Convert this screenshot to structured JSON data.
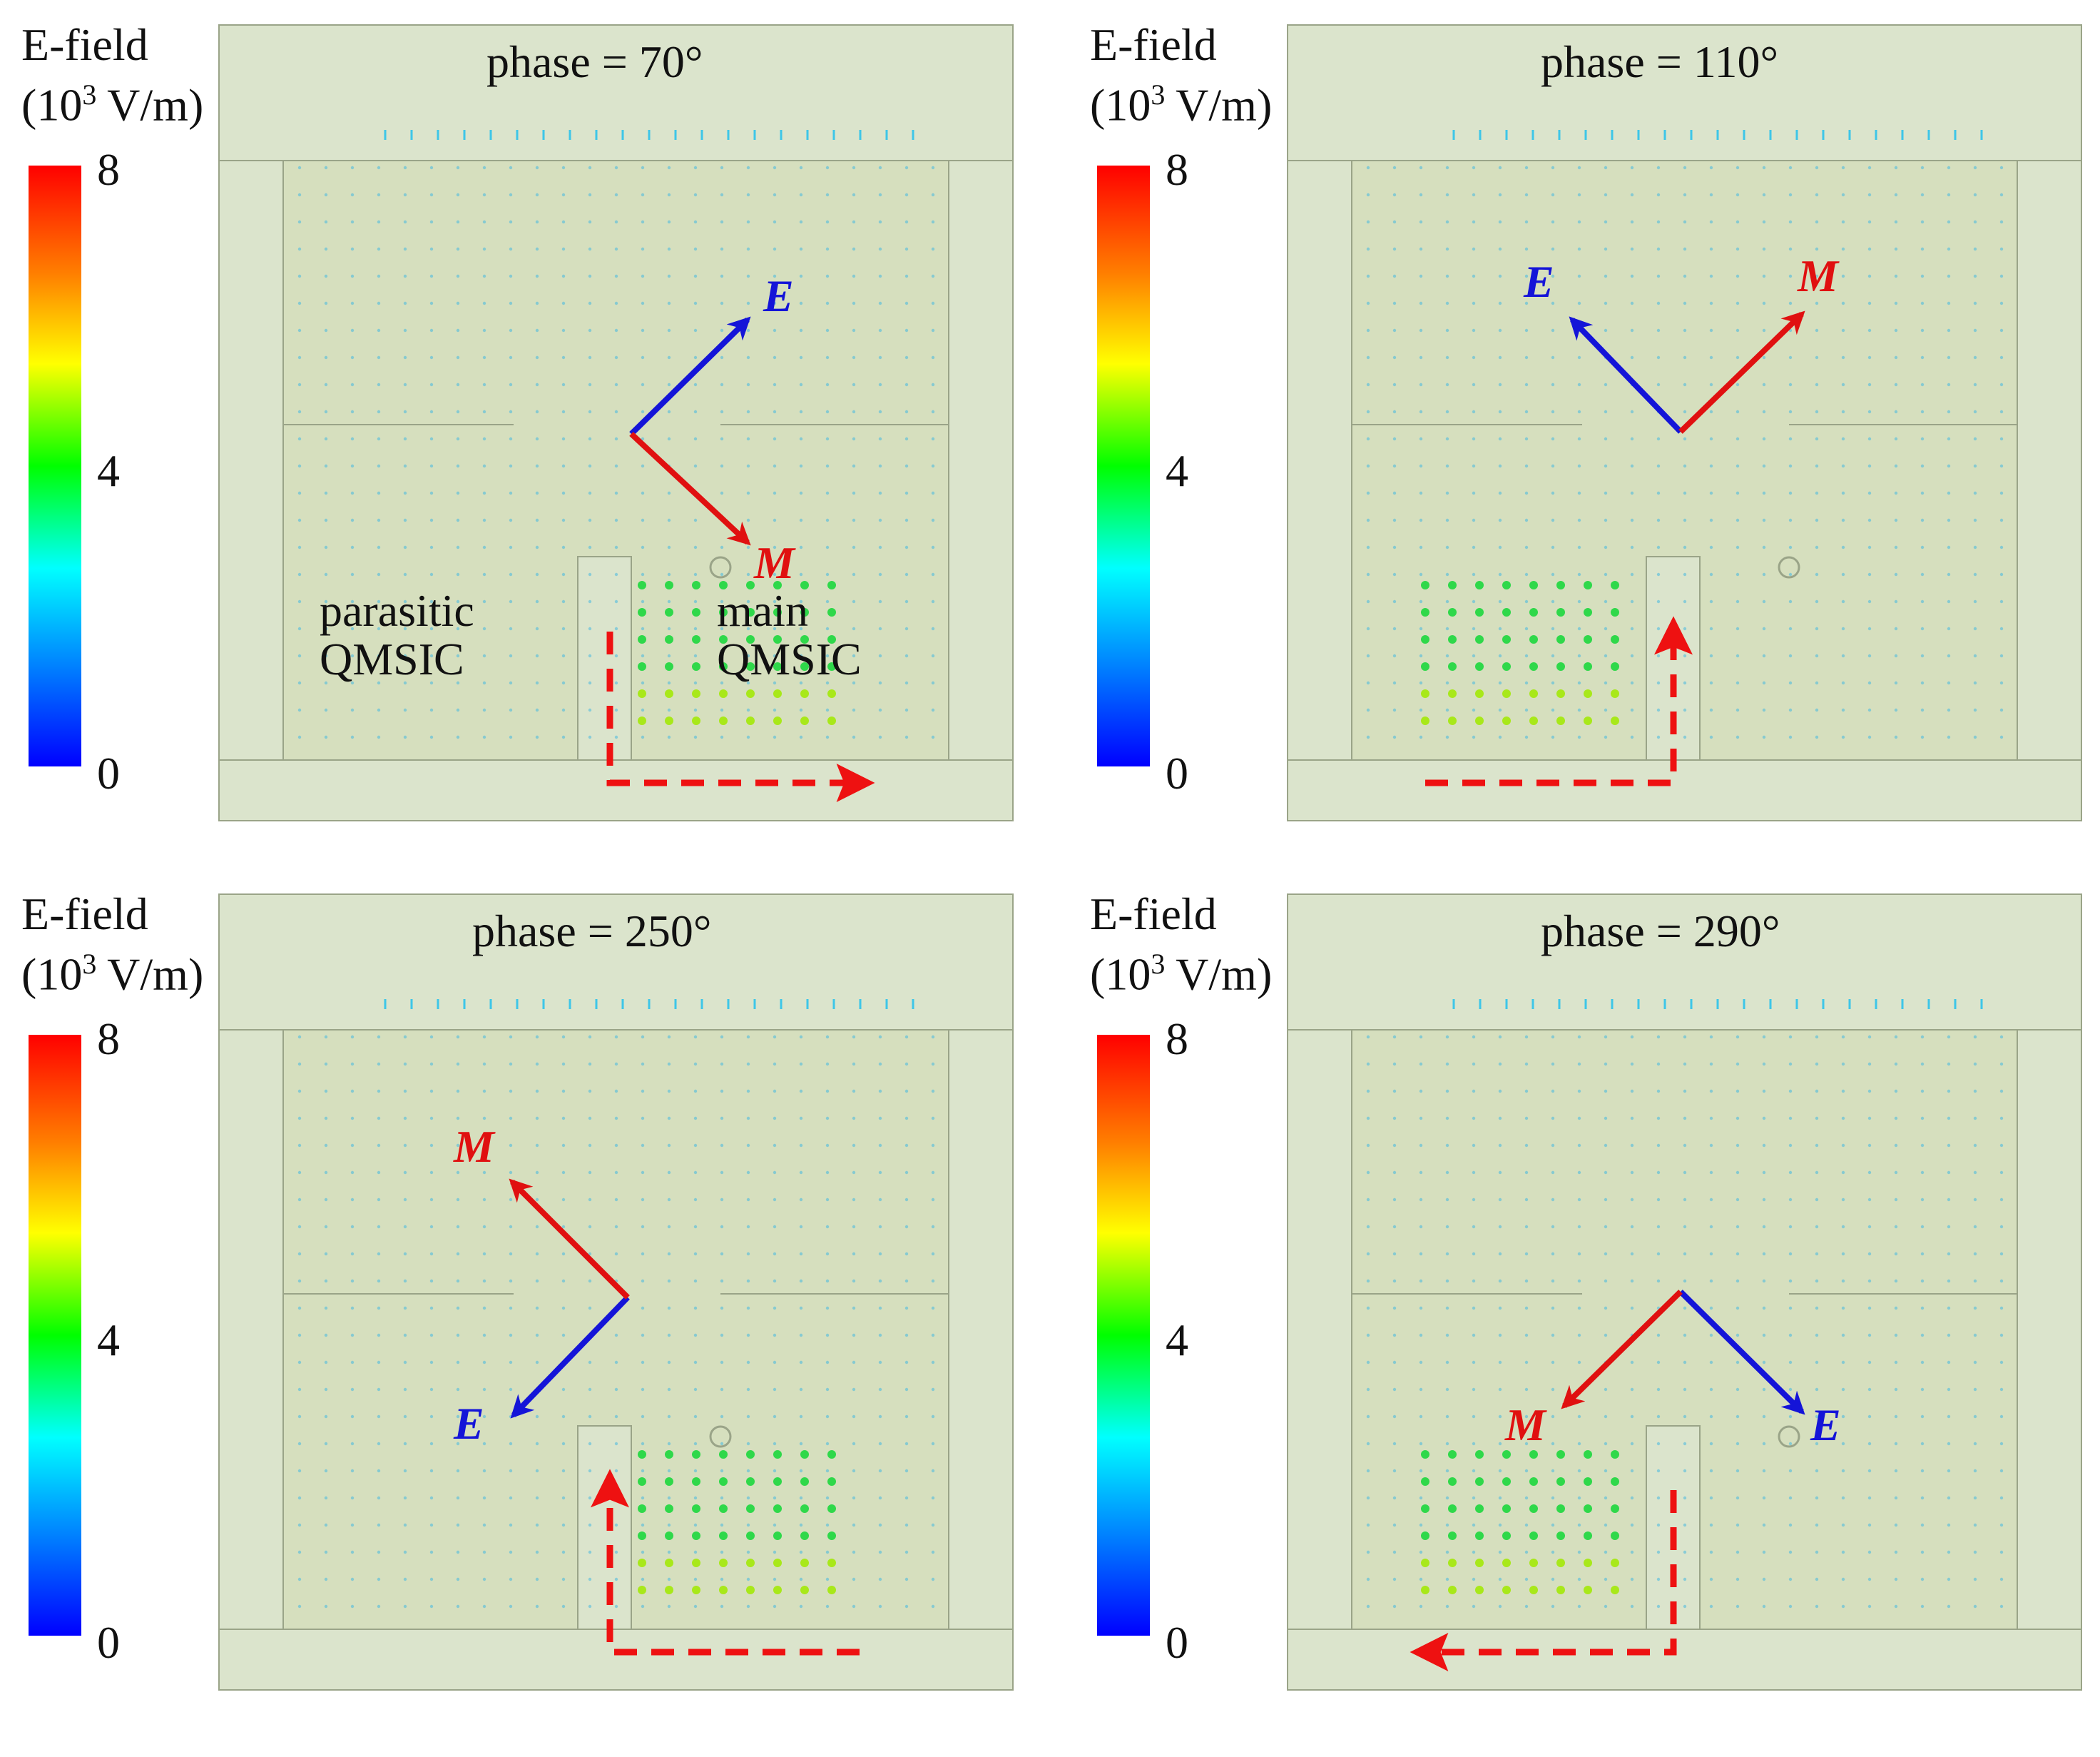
{
  "figure": {
    "colorbar": {
      "title_line1": "E-field",
      "title_line2_prefix": "(10",
      "title_line2_exp": "3",
      "title_line2_suffix": " V/m)",
      "ticks": [
        "8",
        "4",
        "0"
      ],
      "range": [
        0,
        8
      ],
      "colors": [
        "#ff0000",
        "#ff7f00",
        "#ffff00",
        "#00ff00",
        "#00ffff",
        "#0000ff"
      ]
    },
    "vector_labels": {
      "E": "E",
      "M": "M"
    },
    "annotations": {
      "parasitic_line1": "parasitic",
      "parasitic_line2": "QMSIC",
      "main_line1": "main",
      "main_line2": "QMSIC"
    },
    "panels": [
      {
        "phase_label": "phase = 70°",
        "phase_deg": 70,
        "E_direction": "up-right",
        "M_direction": "down-right",
        "current_path": "down-then-right"
      },
      {
        "phase_label": "phase = 110°",
        "phase_deg": 110,
        "E_direction": "up-left",
        "M_direction": "up-right",
        "current_path": "right-then-up"
      },
      {
        "phase_label": "phase = 250°",
        "phase_deg": 250,
        "E_direction": "down-left",
        "M_direction": "up-left",
        "current_path": "left-then-up"
      },
      {
        "phase_label": "phase = 290°",
        "phase_deg": 290,
        "E_direction": "down-right",
        "M_direction": "down-left",
        "current_path": "down-then-left"
      }
    ],
    "colors": {
      "structure_fill": "#d6dfbe",
      "substrate_fill": "#dbe4cc",
      "edge": "#9aa488",
      "E_vector": "#1414d8",
      "M_vector": "#e01010",
      "current_path": "#ee1111"
    }
  }
}
